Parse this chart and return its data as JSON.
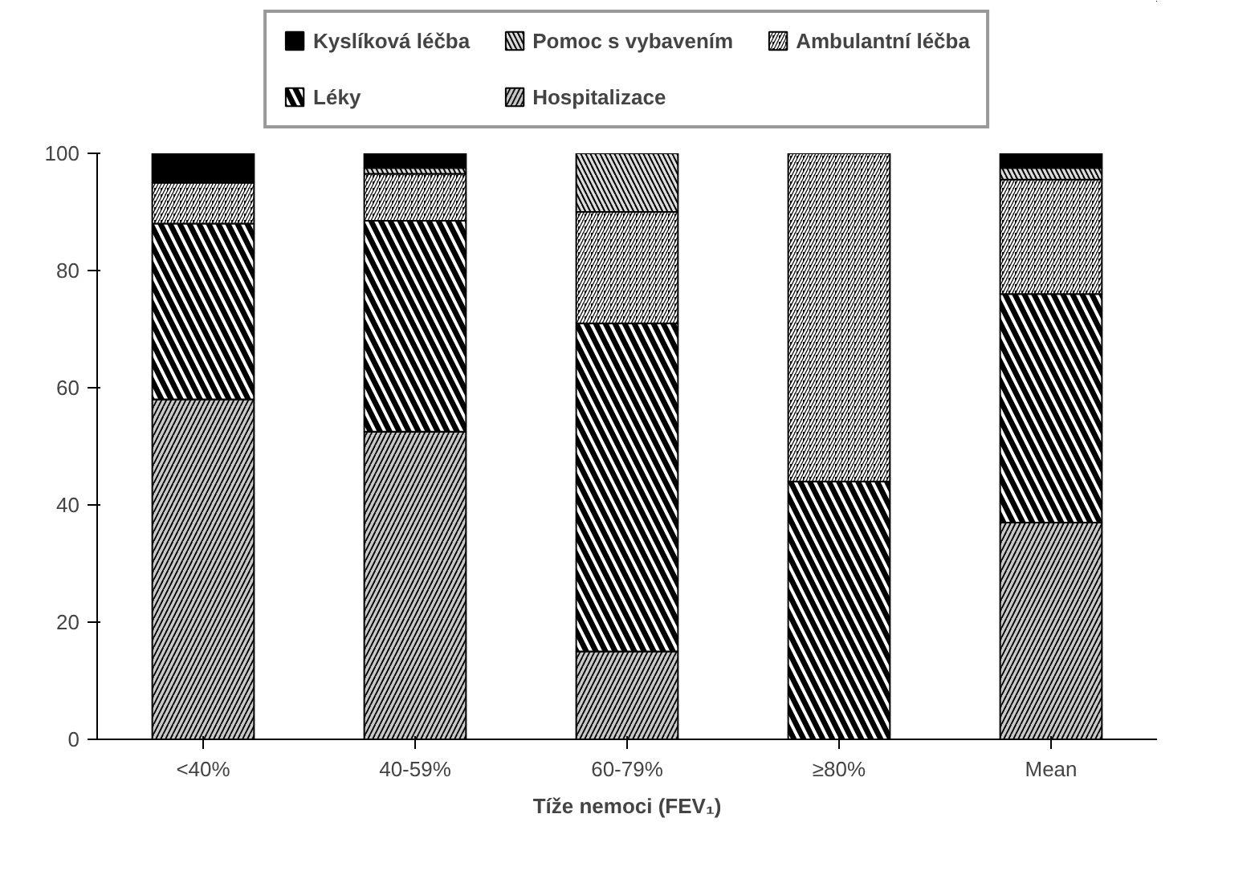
{
  "chart_data": {
    "type": "bar",
    "stacked": true,
    "xlabel": "Tíže nemoci (FEV₁)",
    "categories": [
      "<40%",
      "40-59%",
      "60-79%",
      "≥80%",
      "Mean"
    ],
    "series": [
      {
        "name": "Hospitalizace",
        "color": "#c8c8c8",
        "values": [
          58,
          52.5,
          15,
          0,
          37
        ]
      },
      {
        "name": "Léky",
        "color": "#000000",
        "values": [
          30,
          36,
          56,
          44,
          39
        ]
      },
      {
        "name": "Ambulantní léčba",
        "color": "#000000",
        "values": [
          7,
          8,
          19,
          56,
          19.5
        ]
      },
      {
        "name": "Pomoc s vybavením",
        "color": "#dcdcdc",
        "values": [
          0,
          1,
          10,
          0,
          2
        ]
      },
      {
        "name": "Kyslíková léčba",
        "color": "#000000",
        "values": [
          5,
          2.5,
          0,
          0,
          2.5
        ]
      }
    ],
    "ylim": [
      0,
      100
    ],
    "yticks": [
      0,
      20,
      40,
      60,
      80,
      100
    ],
    "legend": "top",
    "grid": false
  }
}
